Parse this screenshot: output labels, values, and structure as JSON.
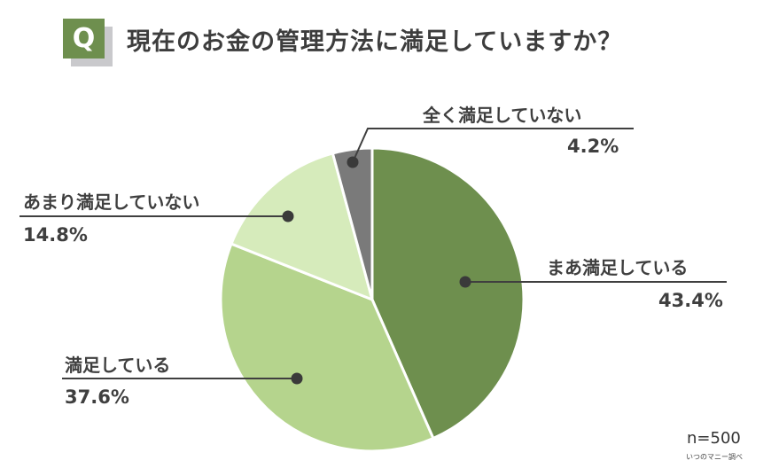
{
  "header": {
    "q_badge": "Q",
    "title": "現在のお金の管理方法に満足していますか？"
  },
  "footer": {
    "sample_size": "n=500",
    "source": "いつのマニー調べ"
  },
  "colors": {
    "q_badge": "#6e8f4e",
    "slice_1": "#6e8f4e",
    "slice_2": "#b5d48d",
    "slice_3": "#d6ebbb",
    "slice_4": "#7a7a7a",
    "leader": "#3f3f3f"
  },
  "chart_data": {
    "type": "pie",
    "title": "現在のお金の管理方法に満足していますか？",
    "categories": [
      "まあ満足している",
      "満足している",
      "あまり満足していない",
      "全く満足していない"
    ],
    "values": [
      43.4,
      37.6,
      14.8,
      4.2
    ],
    "unit": "%",
    "start_angle": "12 o'clock, clockwise",
    "annotations": [
      "n=500",
      "いつのマニー調べ"
    ],
    "legend": "none (direct labels with leader lines)"
  },
  "labels": [
    {
      "name": "まあ満足している",
      "pct": "43.4%"
    },
    {
      "name": "満足している",
      "pct": "37.6%"
    },
    {
      "name": "あまり満足していない",
      "pct": "14.8%"
    },
    {
      "name": "全く満足していない",
      "pct": "4.2%"
    }
  ]
}
